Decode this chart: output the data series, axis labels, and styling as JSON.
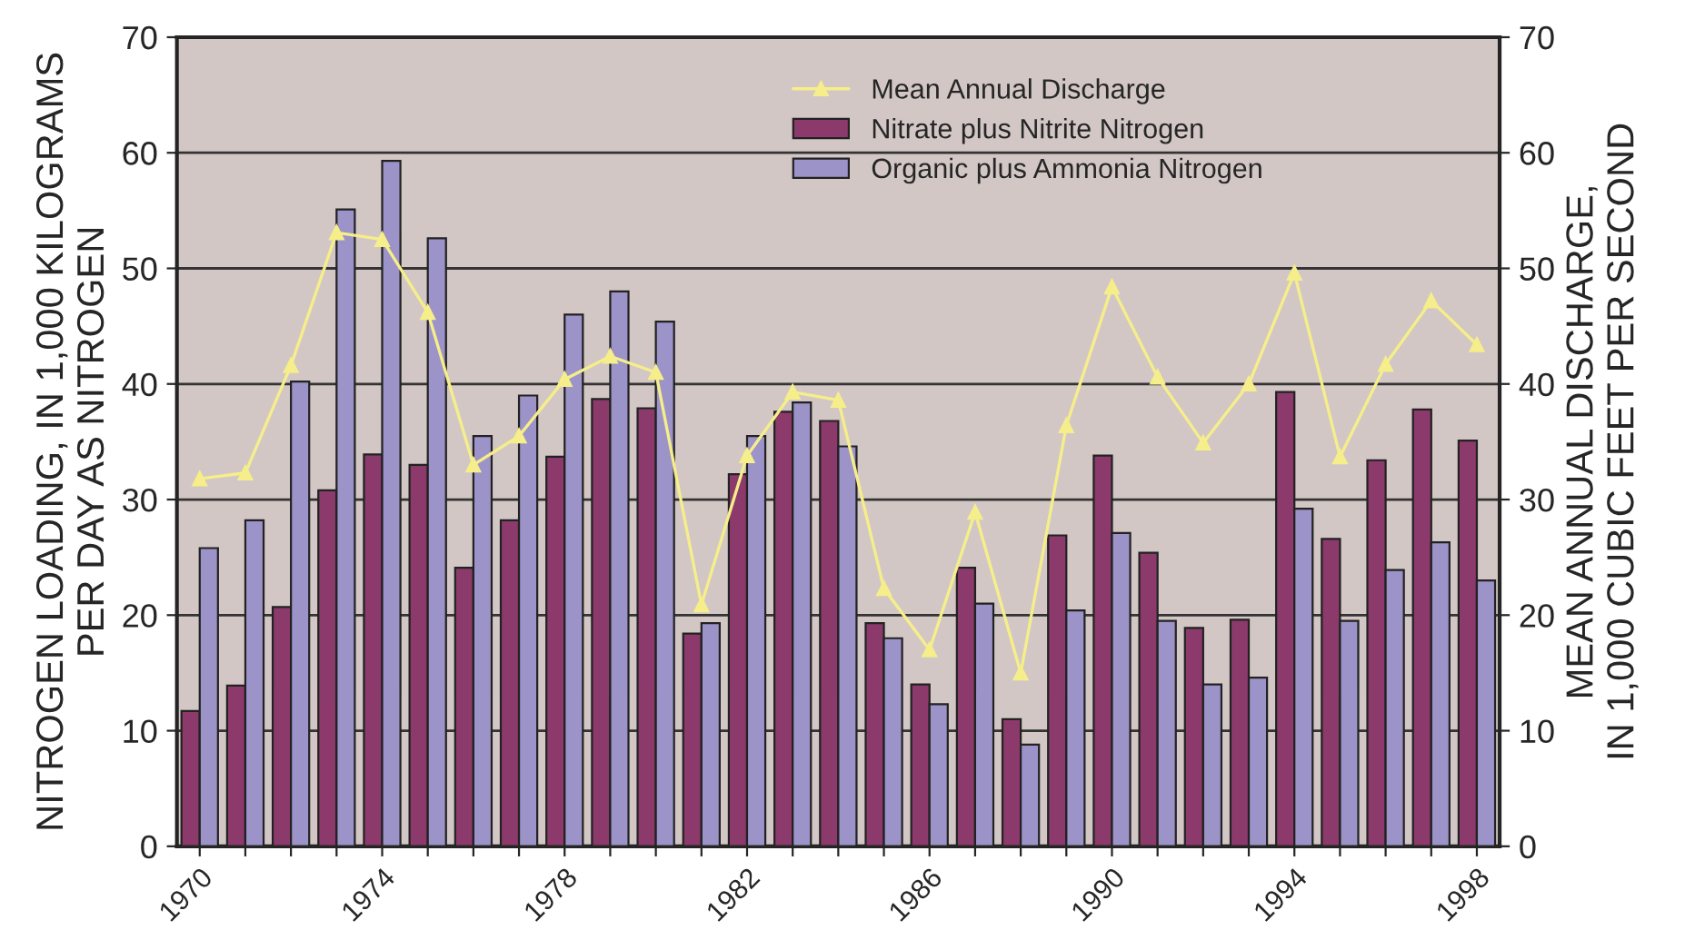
{
  "chart_data": {
    "type": "bar",
    "categories": [
      "1970",
      null,
      null,
      null,
      "1974",
      null,
      null,
      null,
      "1978",
      null,
      null,
      null,
      "1982",
      null,
      null,
      null,
      "1986",
      null,
      null,
      null,
      "1990",
      null,
      null,
      null,
      "1994",
      null,
      null,
      null,
      "1998"
    ],
    "ylabel": "NITROGEN LOADING, IN 1,000 KILOGRAMS\nPER DAY AS NITROGEN",
    "y2label": "MEAN ANNUAL DISCHARGE,\nIN 1,000 CUBIC FEET PER SECOND",
    "series": [
      {
        "name": "Mean Annual Discharge",
        "type": "line",
        "color": "#f5ee8a",
        "marker": "triangle",
        "values": [
          31.8,
          32.3,
          41.6,
          53.1,
          52.5,
          46.2,
          33.0,
          35.5,
          40.4,
          42.4,
          41.0,
          20.9,
          33.8,
          39.3,
          38.6,
          22.3,
          17.0,
          28.9,
          15.0,
          36.4,
          48.4,
          40.6,
          34.9,
          40.0,
          49.6,
          33.7,
          41.7,
          47.2,
          43.4
        ]
      },
      {
        "name": "Nitrate plus Nitrite Nitrogen",
        "color": "#8b3a6b",
        "values": [
          11.7,
          13.9,
          20.7,
          30.8,
          33.9,
          33.0,
          24.1,
          28.2,
          33.7,
          38.7,
          37.9,
          18.4,
          32.2,
          37.6,
          36.8,
          19.3,
          14.0,
          24.1,
          11.0,
          26.9,
          33.8,
          25.4,
          18.9,
          19.6,
          39.3,
          26.6,
          33.4,
          37.8,
          35.1
        ]
      },
      {
        "name": "Organic plus Ammonia Nitrogen",
        "color": "#9c93c8",
        "values": [
          25.8,
          28.2,
          40.2,
          55.1,
          59.3,
          52.6,
          35.5,
          39.0,
          46.0,
          48.0,
          45.4,
          19.3,
          35.5,
          38.4,
          34.6,
          18.0,
          12.3,
          21.0,
          8.8,
          20.4,
          27.1,
          19.5,
          14.0,
          14.6,
          29.2,
          19.5,
          23.9,
          26.3,
          23.0
        ]
      }
    ],
    "ylim": [
      0,
      70
    ],
    "yticks": [
      0,
      10,
      20,
      30,
      40,
      50,
      60,
      70
    ],
    "y2lim": [
      0,
      70
    ],
    "y2ticks": [
      0,
      10,
      20,
      30,
      40,
      50,
      60,
      70
    ],
    "grid": "y",
    "legend": "top right"
  }
}
